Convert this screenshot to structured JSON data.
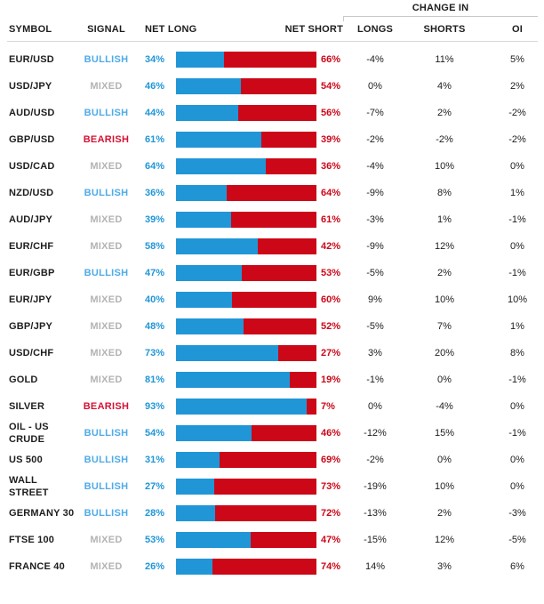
{
  "header": {
    "change_in_label": "CHANGE IN",
    "columns": {
      "symbol": "SYMBOL",
      "signal": "SIGNAL",
      "net_long": "NET LONG",
      "net_short": "NET SHORT",
      "longs": "LONGS",
      "shorts": "SHORTS",
      "oi": "OI"
    }
  },
  "colors": {
    "net_long_blue": "#2196d7",
    "net_short_red": "#cc0818",
    "signal_bullish": "#4fabe8",
    "signal_mixed": "#b3b3b3",
    "signal_bearish": "#d41235",
    "header_text": "#1d1d1d",
    "divider": "#d9d9d9"
  },
  "rows": [
    {
      "symbol": "EUR/USD",
      "signal": "BULLISH",
      "net_long": "34%",
      "net_short": "66%",
      "longs": "-4%",
      "shorts": "11%",
      "oi": "5%"
    },
    {
      "symbol": "USD/JPY",
      "signal": "MIXED",
      "net_long": "46%",
      "net_short": "54%",
      "longs": "0%",
      "shorts": "4%",
      "oi": "2%"
    },
    {
      "symbol": "AUD/USD",
      "signal": "BULLISH",
      "net_long": "44%",
      "net_short": "56%",
      "longs": "-7%",
      "shorts": "2%",
      "oi": "-2%"
    },
    {
      "symbol": "GBP/USD",
      "signal": "BEARISH",
      "net_long": "61%",
      "net_short": "39%",
      "longs": "-2%",
      "shorts": "-2%",
      "oi": "-2%"
    },
    {
      "symbol": "USD/CAD",
      "signal": "MIXED",
      "net_long": "64%",
      "net_short": "36%",
      "longs": "-4%",
      "shorts": "10%",
      "oi": "0%"
    },
    {
      "symbol": "NZD/USD",
      "signal": "BULLISH",
      "net_long": "36%",
      "net_short": "64%",
      "longs": "-9%",
      "shorts": "8%",
      "oi": "1%"
    },
    {
      "symbol": "AUD/JPY",
      "signal": "MIXED",
      "net_long": "39%",
      "net_short": "61%",
      "longs": "-3%",
      "shorts": "1%",
      "oi": "-1%"
    },
    {
      "symbol": "EUR/CHF",
      "signal": "MIXED",
      "net_long": "58%",
      "net_short": "42%",
      "longs": "-9%",
      "shorts": "12%",
      "oi": "0%"
    },
    {
      "symbol": "EUR/GBP",
      "signal": "BULLISH",
      "net_long": "47%",
      "net_short": "53%",
      "longs": "-5%",
      "shorts": "2%",
      "oi": "-1%"
    },
    {
      "symbol": "EUR/JPY",
      "signal": "MIXED",
      "net_long": "40%",
      "net_short": "60%",
      "longs": "9%",
      "shorts": "10%",
      "oi": "10%"
    },
    {
      "symbol": "GBP/JPY",
      "signal": "MIXED",
      "net_long": "48%",
      "net_short": "52%",
      "longs": "-5%",
      "shorts": "7%",
      "oi": "1%"
    },
    {
      "symbol": "USD/CHF",
      "signal": "MIXED",
      "net_long": "73%",
      "net_short": "27%",
      "longs": "3%",
      "shorts": "20%",
      "oi": "8%"
    },
    {
      "symbol": "GOLD",
      "signal": "MIXED",
      "net_long": "81%",
      "net_short": "19%",
      "longs": "-1%",
      "shorts": "0%",
      "oi": "-1%"
    },
    {
      "symbol": "SILVER",
      "signal": "BEARISH",
      "net_long": "93%",
      "net_short": "7%",
      "longs": "0%",
      "shorts": "-4%",
      "oi": "0%"
    },
    {
      "symbol": "OIL - US CRUDE",
      "signal": "BULLISH",
      "net_long": "54%",
      "net_short": "46%",
      "longs": "-12%",
      "shorts": "15%",
      "oi": "-1%"
    },
    {
      "symbol": "US 500",
      "signal": "BULLISH",
      "net_long": "31%",
      "net_short": "69%",
      "longs": "-2%",
      "shorts": "0%",
      "oi": "0%"
    },
    {
      "symbol": "WALL STREET",
      "signal": "BULLISH",
      "net_long": "27%",
      "net_short": "73%",
      "longs": "-19%",
      "shorts": "10%",
      "oi": "0%"
    },
    {
      "symbol": "GERMANY 30",
      "signal": "BULLISH",
      "net_long": "28%",
      "net_short": "72%",
      "longs": "-13%",
      "shorts": "2%",
      "oi": "-3%"
    },
    {
      "symbol": "FTSE 100",
      "signal": "MIXED",
      "net_long": "53%",
      "net_short": "47%",
      "longs": "-15%",
      "shorts": "12%",
      "oi": "-5%"
    },
    {
      "symbol": "FRANCE 40",
      "signal": "MIXED",
      "net_long": "26%",
      "net_short": "74%",
      "longs": "14%",
      "shorts": "3%",
      "oi": "6%"
    }
  ],
  "chart_data": {
    "type": "table",
    "title": "Client sentiment: net long / net short positioning with change in longs, shorts and open interest",
    "bar_style": "horizontal 100% stacked bar per row; blue = net long %, red = net short %",
    "legend_position": "none",
    "grid": false,
    "categories": [
      "EUR/USD",
      "USD/JPY",
      "AUD/USD",
      "GBP/USD",
      "USD/CAD",
      "NZD/USD",
      "AUD/JPY",
      "EUR/CHF",
      "EUR/GBP",
      "EUR/JPY",
      "GBP/JPY",
      "USD/CHF",
      "GOLD",
      "SILVER",
      "OIL - US CRUDE",
      "US 500",
      "WALL STREET",
      "GERMANY 30",
      "FTSE 100",
      "FRANCE 40"
    ],
    "series": [
      {
        "name": "SIGNAL",
        "values": [
          "BULLISH",
          "MIXED",
          "BULLISH",
          "BEARISH",
          "MIXED",
          "BULLISH",
          "MIXED",
          "MIXED",
          "BULLISH",
          "MIXED",
          "MIXED",
          "MIXED",
          "MIXED",
          "BEARISH",
          "BULLISH",
          "BULLISH",
          "BULLISH",
          "BULLISH",
          "MIXED",
          "MIXED"
        ]
      },
      {
        "name": "NET LONG %",
        "values": [
          34,
          46,
          44,
          61,
          64,
          36,
          39,
          58,
          47,
          40,
          48,
          73,
          81,
          93,
          54,
          31,
          27,
          28,
          53,
          26
        ]
      },
      {
        "name": "NET SHORT %",
        "values": [
          66,
          54,
          56,
          39,
          36,
          64,
          61,
          42,
          53,
          60,
          52,
          27,
          19,
          7,
          46,
          69,
          73,
          72,
          47,
          74
        ]
      },
      {
        "name": "CHANGE IN LONGS %",
        "values": [
          -4,
          0,
          -7,
          -2,
          -4,
          -9,
          -3,
          -9,
          -5,
          9,
          -5,
          3,
          -1,
          0,
          -12,
          -2,
          -19,
          -13,
          -15,
          14
        ]
      },
      {
        "name": "CHANGE IN SHORTS %",
        "values": [
          11,
          4,
          2,
          -2,
          10,
          8,
          1,
          12,
          2,
          10,
          7,
          20,
          0,
          -4,
          15,
          0,
          10,
          2,
          12,
          3
        ]
      },
      {
        "name": "CHANGE IN OI %",
        "values": [
          5,
          2,
          -2,
          -2,
          0,
          1,
          -1,
          0,
          -1,
          10,
          1,
          8,
          -1,
          0,
          -1,
          0,
          0,
          -3,
          -5,
          6
        ]
      }
    ]
  }
}
